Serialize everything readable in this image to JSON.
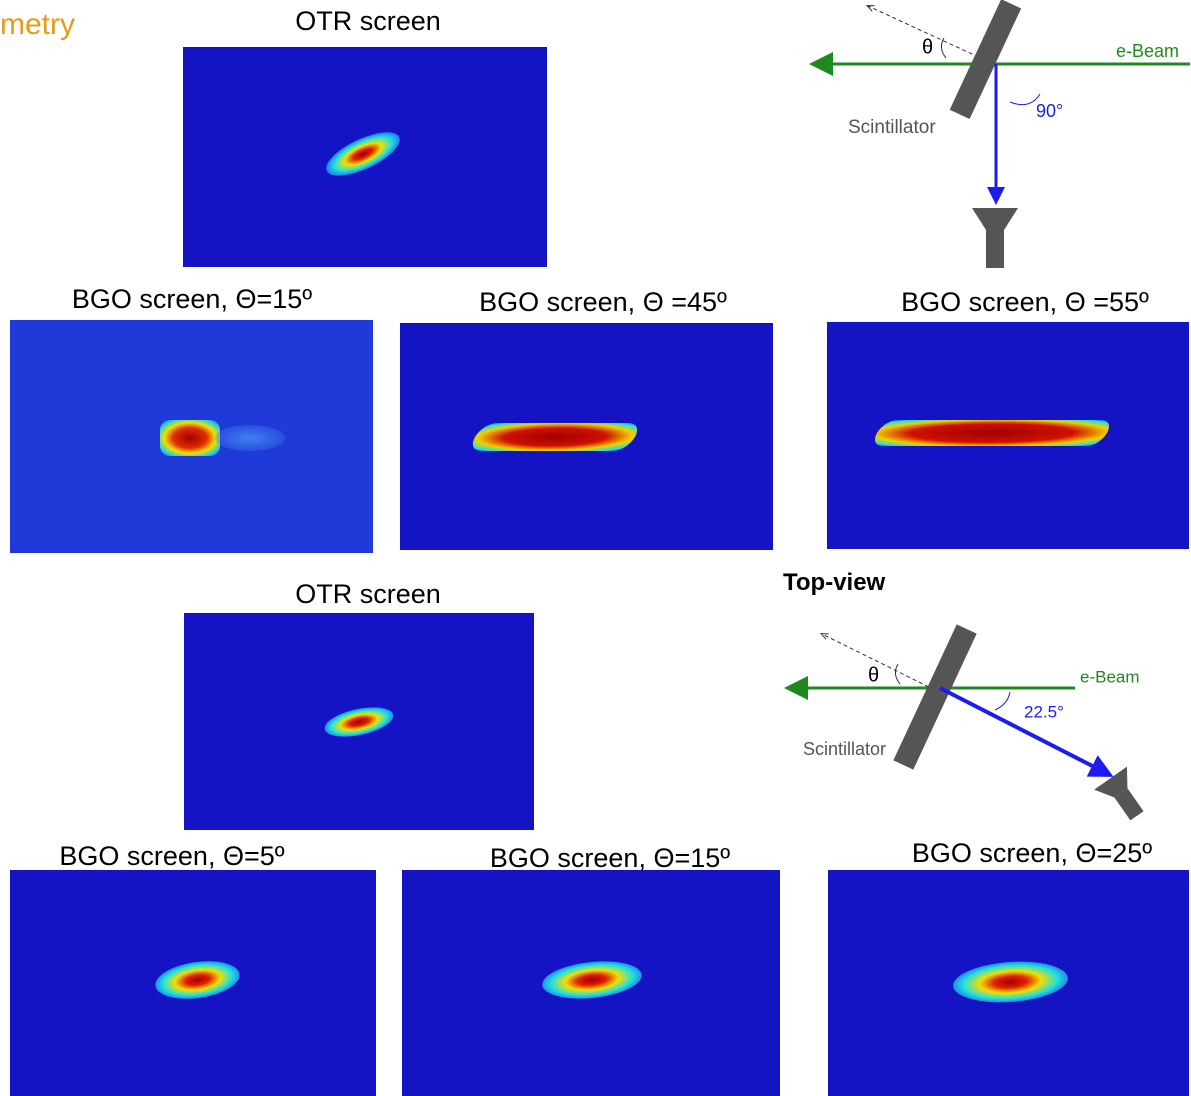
{
  "title_fragment": "metry",
  "side_view": {
    "otr_label": "OTR screen",
    "diagram": {
      "angle_symbol": "θ",
      "beam": "e-Beam",
      "detector_angle": "90°",
      "scintillator": "Scintillator"
    },
    "bgo_labels": [
      "BGO screen, Θ=15º",
      "BGO screen, Θ =45º",
      "BGO screen, Θ =55º"
    ]
  },
  "top_view": {
    "otr_label": "OTR screen",
    "view_title": "Top-view",
    "diagram": {
      "angle_symbol": "θ",
      "beam": "e-Beam",
      "detector_angle": "22.5°",
      "scintillator": "Scintillator"
    },
    "bgo_labels": [
      "BGO screen, Θ=5º",
      "BGO screen, Θ=15º",
      "BGO screen, Θ=25º"
    ]
  }
}
